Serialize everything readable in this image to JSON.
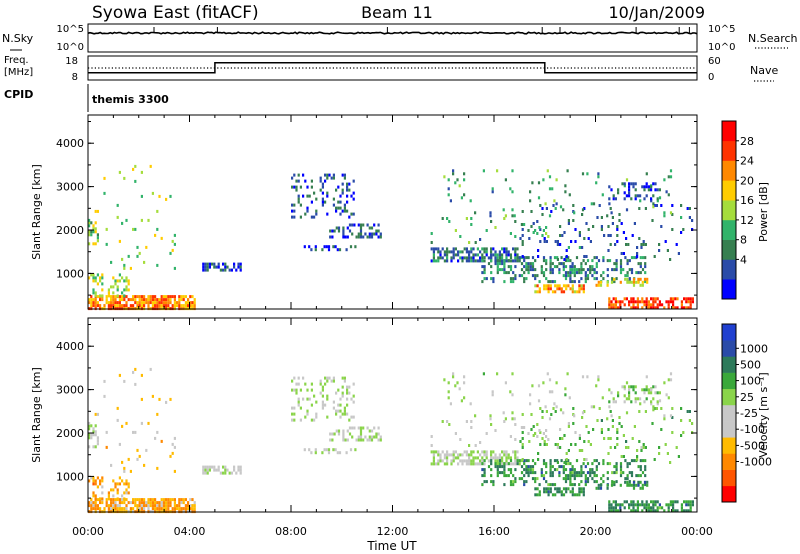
{
  "chart_data": {
    "type": "heatmap",
    "header": {
      "title": "Syowa East (fitACF)",
      "beam": "Beam 11",
      "date": "10/Jan/2009"
    },
    "x_axis": {
      "label": "Time UT",
      "range_hours": [
        0,
        24
      ],
      "ticks": [
        {
          "v": 0,
          "label": "00:00"
        },
        {
          "v": 4,
          "label": "04:00"
        },
        {
          "v": 8,
          "label": "08:00"
        },
        {
          "v": 12,
          "label": "12:00"
        },
        {
          "v": 16,
          "label": "16:00"
        },
        {
          "v": 20,
          "label": "20:00"
        },
        {
          "v": 24,
          "label": "00:00"
        }
      ]
    },
    "strips": {
      "nsky": {
        "left_label": "N.Sky",
        "right_label": "N.Search",
        "left_ticks": [
          "10^5",
          "10^0"
        ],
        "right_ticks": [
          "10^5",
          "10^0"
        ]
      },
      "freq": {
        "left_label_1": "Freq.",
        "left_label_2": "[MHz]",
        "right_label": "Nave",
        "left_ticks": [
          "18",
          "8"
        ],
        "right_ticks": [
          "60",
          "0"
        ],
        "freq_steps": [
          {
            "t0": 0,
            "t1": 5,
            "level": 0.3
          },
          {
            "t0": 5,
            "t1": 18,
            "level": 0.72
          },
          {
            "t0": 18,
            "t1": 24,
            "level": 0.3
          }
        ],
        "nave_level": 0.5
      },
      "cpid": {
        "left_label": "CPID",
        "segments": [
          {
            "t0": 0,
            "label": "themis 3300"
          }
        ]
      }
    },
    "panels": [
      {
        "name": "power",
        "ylabel": "Slant Range [km]",
        "ylim": [
          180,
          4650
        ],
        "yticks": [
          1000,
          2000,
          3000,
          4000
        ],
        "colorbar": {
          "label": "Power [dB]",
          "colors": [
            "#0000ff",
            "#2a4ba8",
            "#367f50",
            "#31b36a",
            "#a5dd3c",
            "#ffcc00",
            "#ff8800",
            "#ff3300",
            "#ff0000"
          ],
          "tick_labels": [
            "4",
            "8",
            "12",
            "16",
            "20",
            "24",
            "28"
          ]
        }
      },
      {
        "name": "velocity",
        "ylabel": "Slant Range [km]",
        "ylim": [
          180,
          4650
        ],
        "yticks": [
          1000,
          2000,
          3000,
          4000
        ],
        "colorbar": {
          "label": "Velocity [m s⁻¹]",
          "colors": [
            "#ff0000",
            "#ff5500",
            "#ff8800",
            "#ffbb00",
            "#c8c8c8",
            "#c8c8c8",
            "#8ad44a",
            "#3aa83a",
            "#2d7a5a",
            "#2a4ba8",
            "#2040d0"
          ],
          "tick_labels": [
            "-1000",
            "-500",
            "-100",
            "-25",
            "25",
            "100",
            "500",
            "1000"
          ]
        }
      }
    ],
    "echo_regions": [
      {
        "t0": 0.0,
        "t1": 4.2,
        "r0": 200,
        "r1": 500,
        "pw": 0.75,
        "vel": -0.45,
        "density": 0.8
      },
      {
        "t0": 0.0,
        "t1": 1.6,
        "r0": 500,
        "r1": 1000,
        "pw": 0.5,
        "vel": -0.5,
        "density": 0.35
      },
      {
        "t0": 0.0,
        "t1": 0.4,
        "r0": 1700,
        "r1": 2200,
        "pw": 0.45,
        "vel": 0.0,
        "density": 0.55
      },
      {
        "t0": 0.0,
        "t1": 3.5,
        "r0": 1000,
        "r1": 3500,
        "pw": 0.5,
        "vel": -0.3,
        "density": 0.03
      },
      {
        "t0": 4.5,
        "t1": 6.0,
        "r0": 1100,
        "r1": 1250,
        "pw": 0.12,
        "vel": 0.0,
        "density": 0.45
      },
      {
        "t0": 8.0,
        "t1": 10.5,
        "r0": 2300,
        "r1": 3300,
        "pw": 0.12,
        "vel": 0.05,
        "density": 0.22
      },
      {
        "t0": 9.5,
        "t1": 11.5,
        "r0": 1850,
        "r1": 2150,
        "pw": 0.15,
        "vel": 0.05,
        "density": 0.35
      },
      {
        "t0": 8.5,
        "t1": 10.5,
        "r0": 1550,
        "r1": 1650,
        "pw": 0.12,
        "vel": 0.0,
        "density": 0.3
      },
      {
        "t0": 13.5,
        "t1": 17.0,
        "r0": 1300,
        "r1": 1600,
        "pw": 0.2,
        "vel": 0.05,
        "density": 0.6
      },
      {
        "t0": 15.5,
        "t1": 22.0,
        "r0": 800,
        "r1": 1400,
        "pw": 0.25,
        "vel": 0.5,
        "density": 0.35
      },
      {
        "t0": 17.0,
        "t1": 23.8,
        "r0": 1300,
        "r1": 2600,
        "pw": 0.15,
        "vel": 0.3,
        "density": 0.08
      },
      {
        "t0": 17.5,
        "t1": 19.5,
        "r0": 550,
        "r1": 750,
        "pw": 0.7,
        "vel": 0.5,
        "density": 0.55
      },
      {
        "t0": 20.0,
        "t1": 22.0,
        "r0": 700,
        "r1": 900,
        "pw": 0.6,
        "vel": 0.55,
        "density": 0.35
      },
      {
        "t0": 20.5,
        "t1": 23.8,
        "r0": 200,
        "r1": 450,
        "pw": 0.9,
        "vel": 0.5,
        "density": 0.6
      },
      {
        "t0": 13.5,
        "t1": 18.5,
        "r0": 1700,
        "r1": 2300,
        "pw": 0.35,
        "vel": 0.0,
        "density": 0.05
      },
      {
        "t0": 14.0,
        "t1": 23.0,
        "r0": 2300,
        "r1": 3400,
        "pw": 0.3,
        "vel": 0.1,
        "density": 0.04
      },
      {
        "t0": 20.5,
        "t1": 22.5,
        "r0": 2700,
        "r1": 3100,
        "pw": 0.12,
        "vel": 0.2,
        "density": 0.3
      }
    ]
  }
}
